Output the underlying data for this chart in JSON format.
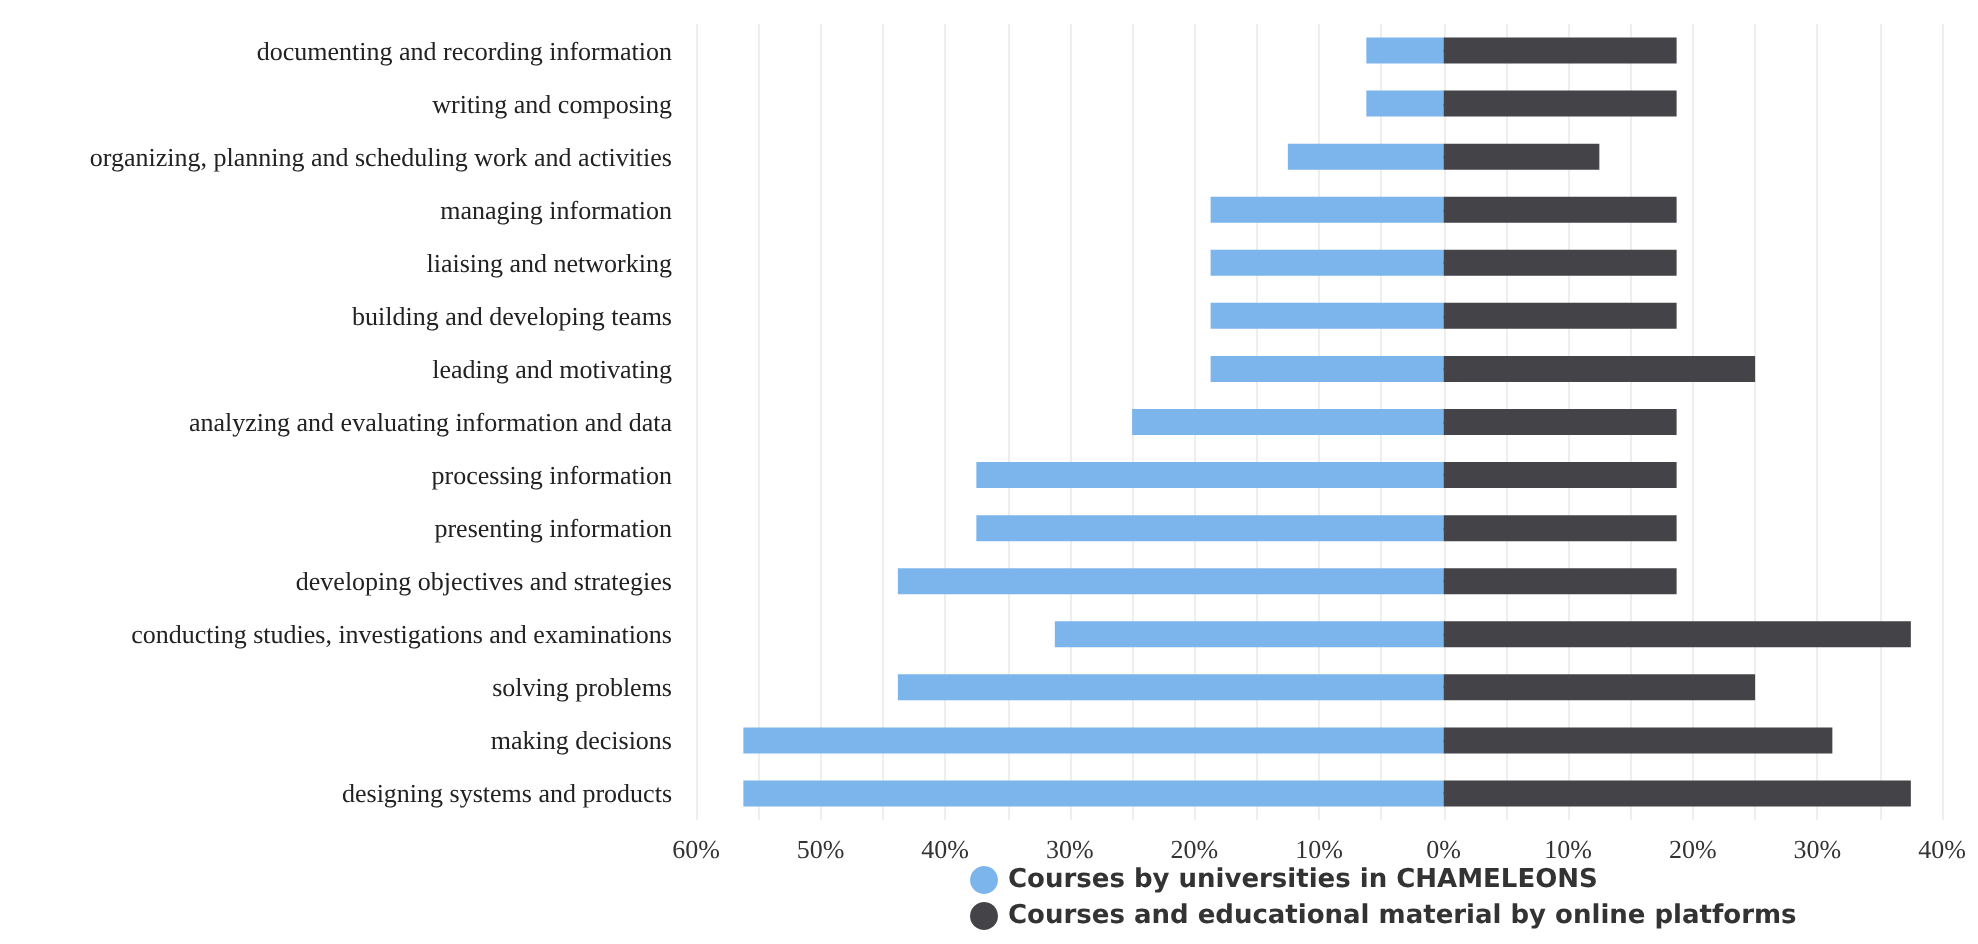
{
  "chart_data": {
    "type": "bar",
    "orientation": "horizontal",
    "stacked": true,
    "categories": [
      "documenting and recording information",
      "writing and composing",
      "organizing, planning and scheduling work and activities",
      "managing information",
      "liaising and networking",
      "building and developing teams",
      "leading and motivating",
      "analyzing and evaluating information and data",
      "processing information",
      "presenting information",
      "developing objectives and strategies",
      "conducting studies, investigations and examinations",
      "solving problems",
      "making decisions",
      "designing systems and products"
    ],
    "series": [
      {
        "name": "Courses by universities in CHAMELEONS",
        "color": "#7cb5ec",
        "values": [
          -6.2,
          -6.2,
          -12.5,
          -18.7,
          -18.7,
          -18.7,
          -18.7,
          -25,
          -37.5,
          -37.5,
          -43.8,
          -31.2,
          -43.8,
          -56.2,
          -56.2
        ]
      },
      {
        "name": "Courses and educational material by online platforms",
        "color": "#434348",
        "values": [
          18.7,
          18.7,
          12.5,
          18.7,
          18.7,
          18.7,
          25,
          18.7,
          18.7,
          18.7,
          18.7,
          37.5,
          25,
          31.2,
          37.5
        ]
      }
    ],
    "xlim": [
      -60,
      40
    ],
    "xticks": [
      {
        "value": -60,
        "label": "60%"
      },
      {
        "value": -55,
        "label": null
      },
      {
        "value": -50,
        "label": "50%"
      },
      {
        "value": -45,
        "label": null
      },
      {
        "value": -40,
        "label": "40%"
      },
      {
        "value": -35,
        "label": null
      },
      {
        "value": -30,
        "label": "30%"
      },
      {
        "value": -25,
        "label": null
      },
      {
        "value": -20,
        "label": "20%"
      },
      {
        "value": -15,
        "label": null
      },
      {
        "value": -10,
        "label": "10%"
      },
      {
        "value": -5,
        "label": null
      },
      {
        "value": 0,
        "label": "0%"
      },
      {
        "value": 5,
        "label": null
      },
      {
        "value": 10,
        "label": "10%"
      },
      {
        "value": 15,
        "label": null
      },
      {
        "value": 20,
        "label": "20%"
      },
      {
        "value": 25,
        "label": null
      },
      {
        "value": 30,
        "label": "30%"
      },
      {
        "value": 35,
        "label": null
      },
      {
        "value": 40,
        "label": "40%"
      }
    ],
    "grid": "x",
    "legend": "bottom"
  }
}
